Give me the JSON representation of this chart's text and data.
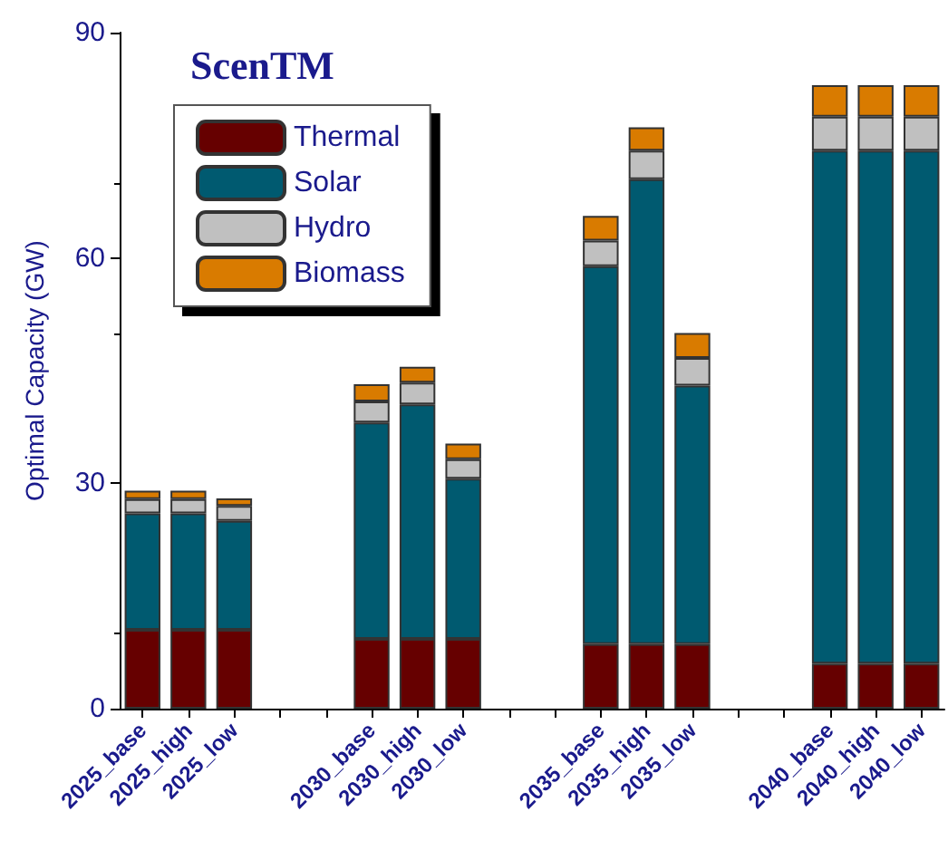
{
  "chart_data": {
    "type": "bar",
    "title": "ScenTM",
    "ylabel": "Optimal Capacity (GW)",
    "categories": [
      "2025_base",
      "2025_high",
      "2025_low",
      null,
      null,
      "2030_base",
      "2030_high",
      "2030_low",
      null,
      null,
      "2035_base",
      "2035_high",
      "2035_low",
      null,
      null,
      "2040_base",
      "2040_high",
      "2040_low"
    ],
    "stacked": true,
    "series": [
      {
        "name": "Thermal",
        "color": "#660000",
        "values": [
          10.5,
          10.5,
          10.5,
          null,
          null,
          9.3,
          9.3,
          9.3,
          null,
          null,
          8.6,
          8.6,
          8.6,
          null,
          null,
          6.0,
          6.0,
          6.0
        ]
      },
      {
        "name": "Solar",
        "color": "#005a70",
        "values": [
          15.5,
          15.5,
          14.5,
          null,
          null,
          28.8,
          31.2,
          21.3,
          null,
          null,
          50.3,
          61.9,
          34.4,
          null,
          null,
          68.3,
          68.3,
          68.3
        ]
      },
      {
        "name": "Hydro",
        "color": "#c0c0c0",
        "values": [
          1.9,
          1.9,
          2.0,
          null,
          null,
          2.8,
          2.9,
          2.6,
          null,
          null,
          3.4,
          3.8,
          3.7,
          null,
          null,
          4.5,
          4.5,
          4.5
        ]
      },
      {
        "name": "Biomass",
        "color": "#d97b00",
        "values": [
          1.1,
          1.1,
          1.0,
          null,
          null,
          2.3,
          2.1,
          2.1,
          null,
          null,
          3.3,
          3.1,
          3.3,
          null,
          null,
          4.2,
          4.2,
          4.2
        ]
      }
    ],
    "ylim": [
      0,
      90
    ],
    "yticks": [
      0,
      30,
      60,
      90
    ],
    "grid": false,
    "legend": "top left"
  }
}
